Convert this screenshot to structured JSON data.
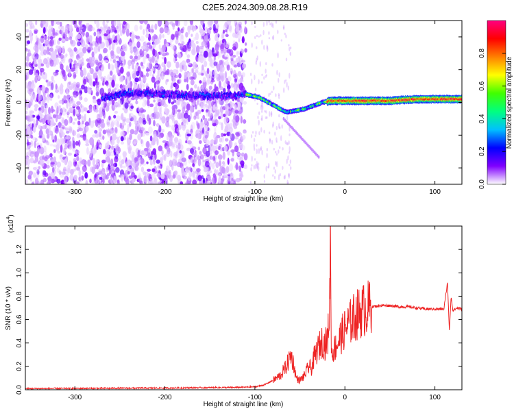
{
  "title": "C2E5.2024.309.08.28.R19",
  "chart_data": [
    {
      "type": "heatmap",
      "xlabel": "Height of straight line (km)",
      "ylabel": "Frequency (Hz)",
      "xlim": [
        -355,
        130
      ],
      "ylim": [
        -50,
        50
      ],
      "xticks": [
        -300,
        -200,
        -100,
        0,
        100
      ],
      "xtick_labels": [
        "-300",
        "-200",
        "-100",
        "0",
        "100"
      ],
      "yticks": [
        -40,
        -20,
        0,
        20,
        40
      ],
      "ytick_labels": [
        "-40",
        "-20",
        "0",
        "20",
        "40"
      ],
      "colorbar": {
        "label": "Normalized spectral amplitude",
        "range": [
          0,
          1
        ],
        "ticks": [
          0.0,
          0.2,
          0.4,
          0.6,
          0.8
        ],
        "tick_labels": [
          "0.0",
          "0.2",
          "0.4",
          "0.6",
          "0.8"
        ],
        "colormap": [
          "#ffffff",
          "#8000ff",
          "#0000ff",
          "#00c0ff",
          "#00ff80",
          "#40ff00",
          "#ffff00",
          "#ff8000",
          "#ff0000",
          "#ff0080"
        ]
      },
      "ridge": {
        "x": [
          -265,
          -240,
          -200,
          -160,
          -130,
          -110,
          -95,
          -85,
          -75,
          -65,
          -55,
          -45,
          -35,
          -25,
          -15,
          0,
          20,
          50,
          80,
          100,
          130
        ],
        "frequency": [
          3,
          6,
          5,
          4,
          4,
          5,
          3,
          0,
          -3,
          -6,
          -5,
          -4,
          -2,
          0,
          1,
          1,
          1,
          1,
          2,
          2,
          2
        ]
      },
      "grid": false
    },
    {
      "type": "line",
      "xlabel": "Height of straight line (km)",
      "ylabel": "SNR (10 * v/v)",
      "y_multiplier": "(x10",
      "y_multiplier_exp": "4",
      "y_multiplier_close": ")",
      "xlim": [
        -355,
        130
      ],
      "ylim": [
        0,
        1.4
      ],
      "xticks": [
        -300,
        -200,
        -100,
        0,
        100
      ],
      "xtick_labels": [
        "-300",
        "-200",
        "-100",
        "0",
        "100"
      ],
      "yticks": [
        0.0,
        0.2,
        0.4,
        0.6,
        0.8,
        1.0,
        1.2
      ],
      "ytick_labels": [
        "0.0",
        "0.2",
        "0.4",
        "0.6",
        "0.8",
        "1.0",
        "1.2"
      ],
      "series": [
        {
          "color": "#ee2222",
          "x": [
            -355,
            -200,
            -120,
            -100,
            -90,
            -80,
            -72,
            -65,
            -60,
            -57,
            -54,
            -50,
            -45,
            -40,
            -37,
            -34,
            -30,
            -25,
            -22,
            -19,
            -17,
            -16,
            -15,
            -12,
            -8,
            -5,
            0,
            10,
            20,
            30,
            40,
            50,
            60,
            70,
            80,
            90,
            100,
            110,
            114,
            116,
            118,
            120,
            125,
            130
          ],
          "values": [
            0.01,
            0.015,
            0.02,
            0.025,
            0.04,
            0.08,
            0.12,
            0.2,
            0.3,
            0.22,
            0.1,
            0.08,
            0.12,
            0.2,
            0.18,
            0.28,
            0.35,
            0.42,
            0.38,
            0.45,
            0.7,
            1.4,
            0.3,
            0.35,
            0.4,
            0.45,
            0.52,
            0.62,
            0.68,
            0.71,
            0.72,
            0.72,
            0.71,
            0.71,
            0.7,
            0.69,
            0.69,
            0.69,
            0.92,
            0.5,
            0.8,
            0.68,
            0.7,
            0.69
          ]
        }
      ],
      "grid": false
    }
  ]
}
